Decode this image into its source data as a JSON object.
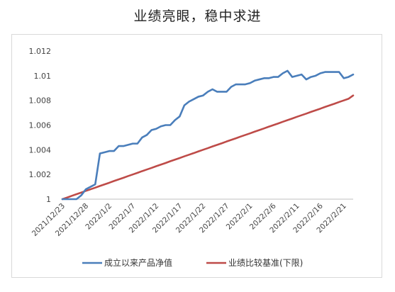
{
  "page": {
    "title": "业绩亮眼，稳中求进"
  },
  "chart_data": {
    "type": "line",
    "title": "业绩亮眼，稳中求进",
    "xlabel": "",
    "ylabel": "",
    "ylim": [
      1,
      1.012
    ],
    "yticks": [
      1,
      1.002,
      1.004,
      1.006,
      1.008,
      1.01,
      1.012
    ],
    "ytick_labels": [
      "1",
      "1.002",
      "1.004",
      "1.006",
      "1.008",
      "1.01",
      "1.012"
    ],
    "x_dates": [
      "2021/12/23",
      "2021/12/24",
      "2021/12/25",
      "2021/12/26",
      "2021/12/27",
      "2021/12/28",
      "2021/12/29",
      "2021/12/30",
      "2021/12/31",
      "2022/1/1",
      "2022/1/2",
      "2022/1/3",
      "2022/1/4",
      "2022/1/5",
      "2022/1/6",
      "2022/1/7",
      "2022/1/8",
      "2022/1/9",
      "2022/1/10",
      "2022/1/11",
      "2022/1/12",
      "2022/1/13",
      "2022/1/14",
      "2022/1/15",
      "2022/1/16",
      "2022/1/17",
      "2022/1/18",
      "2022/1/19",
      "2022/1/20",
      "2022/1/21",
      "2022/1/22",
      "2022/1/23",
      "2022/1/24",
      "2022/1/25",
      "2022/1/26",
      "2022/1/27",
      "2022/1/28",
      "2022/1/29",
      "2022/1/30",
      "2022/1/31",
      "2022/2/1",
      "2022/2/2",
      "2022/2/3",
      "2022/2/4",
      "2022/2/5",
      "2022/2/6",
      "2022/2/7",
      "2022/2/8",
      "2022/2/9",
      "2022/2/10",
      "2022/2/11",
      "2022/2/12",
      "2022/2/13",
      "2022/2/14",
      "2022/2/15",
      "2022/2/16",
      "2022/2/17",
      "2022/2/18",
      "2022/2/19",
      "2022/2/20",
      "2022/2/21",
      "2022/2/22",
      "2022/2/23"
    ],
    "xtick_labels": [
      "2021/12/23",
      "2021/12/28",
      "2022/1/2",
      "2022/1/7",
      "2022/1/12",
      "2022/1/17",
      "2022/1/22",
      "2022/1/27",
      "2022/2/1",
      "2022/2/6",
      "2022/2/11",
      "2022/2/16",
      "2022/2/21"
    ],
    "xtick_indices": [
      0,
      5,
      10,
      15,
      20,
      25,
      30,
      35,
      40,
      45,
      50,
      55,
      60
    ],
    "legend_position": "bottom",
    "grid": false,
    "series": [
      {
        "name": "成立以来产品净值",
        "color": "#4a7ebb",
        "values": [
          1.0,
          1.0,
          1.0,
          1.0,
          1.0003,
          1.0008,
          1.001,
          1.0012,
          1.0037,
          1.0038,
          1.0039,
          1.0039,
          1.0043,
          1.0043,
          1.0044,
          1.0045,
          1.0045,
          1.005,
          1.0052,
          1.0056,
          1.0057,
          1.0059,
          1.006,
          1.006,
          1.0064,
          1.0067,
          1.0076,
          1.0079,
          1.0081,
          1.0083,
          1.0084,
          1.0087,
          1.0089,
          1.0087,
          1.0087,
          1.0087,
          1.0091,
          1.0093,
          1.0093,
          1.0093,
          1.0094,
          1.0096,
          1.0097,
          1.0098,
          1.0098,
          1.0099,
          1.0099,
          1.0102,
          1.0104,
          1.0099,
          1.01,
          1.0101,
          1.0097,
          1.0099,
          1.01,
          1.0102,
          1.0103,
          1.0103,
          1.0103,
          1.0103,
          1.0098,
          1.0099,
          1.0101
        ]
      },
      {
        "name": "业绩比较基准(下限)",
        "color": "#be4b48",
        "values": [
          1.0,
          1.00013,
          1.00027,
          1.0004,
          1.00053,
          1.00067,
          1.0008,
          1.00093,
          1.00107,
          1.0012,
          1.00133,
          1.00147,
          1.0016,
          1.00173,
          1.00187,
          1.002,
          1.00213,
          1.00227,
          1.0024,
          1.00253,
          1.00267,
          1.0028,
          1.00293,
          1.00307,
          1.0032,
          1.00333,
          1.00347,
          1.0036,
          1.00373,
          1.00387,
          1.004,
          1.00413,
          1.00427,
          1.0044,
          1.00453,
          1.00467,
          1.0048,
          1.00493,
          1.00507,
          1.0052,
          1.00533,
          1.00547,
          1.0056,
          1.00573,
          1.00587,
          1.006,
          1.00613,
          1.00627,
          1.0064,
          1.00653,
          1.00667,
          1.0068,
          1.00693,
          1.00707,
          1.0072,
          1.00733,
          1.00747,
          1.0076,
          1.00773,
          1.00787,
          1.008,
          1.00813,
          1.0084
        ]
      }
    ]
  }
}
